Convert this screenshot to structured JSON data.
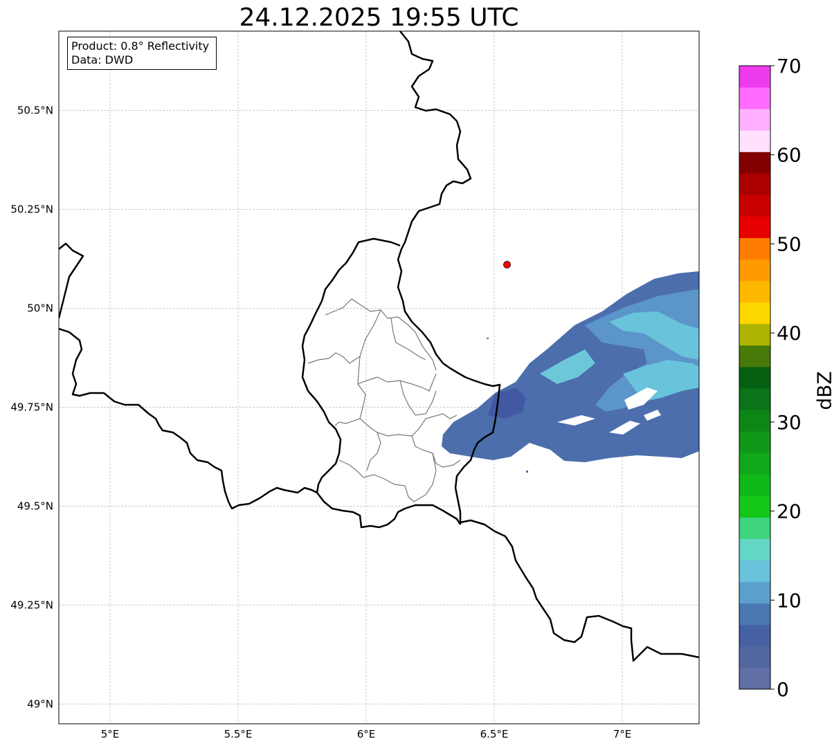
{
  "title": "24.12.2025 19:55 UTC",
  "info": {
    "product": "Product: 0.8° Reflectivity",
    "data": "Data: DWD"
  },
  "axes": {
    "lon_ticks": [
      {
        "value": 5.0,
        "label": "5°E"
      },
      {
        "value": 5.5,
        "label": "5.5°E"
      },
      {
        "value": 6.0,
        "label": "6°E"
      },
      {
        "value": 6.5,
        "label": "6.5°E"
      },
      {
        "value": 7.0,
        "label": "7°E"
      }
    ],
    "lat_ticks": [
      {
        "value": 49.0,
        "label": "49°N"
      },
      {
        "value": 49.25,
        "label": "49.25°N"
      },
      {
        "value": 49.5,
        "label": "49.5°N"
      },
      {
        "value": 49.75,
        "label": "49.75°N"
      },
      {
        "value": 50.0,
        "label": "50°N"
      },
      {
        "value": 50.25,
        "label": "50.25°N"
      },
      {
        "value": 50.5,
        "label": "50.5°N"
      }
    ],
    "lon_range": [
      4.8,
      7.3
    ],
    "lat_range": [
      48.95,
      50.7
    ],
    "grid": true
  },
  "radar_site": {
    "lon": 6.55,
    "lat": 50.11,
    "color": "#ff0000"
  },
  "colorbar": {
    "label": "dBZ",
    "range": [
      0,
      70
    ],
    "ticks": [
      {
        "value": 0,
        "label": "0"
      },
      {
        "value": 10,
        "label": "10"
      },
      {
        "value": 20,
        "label": "20"
      },
      {
        "value": 30,
        "label": "30"
      },
      {
        "value": 40,
        "label": "40"
      },
      {
        "value": 50,
        "label": "50"
      },
      {
        "value": 60,
        "label": "60"
      },
      {
        "value": 70,
        "label": "70"
      }
    ],
    "colors": [
      "#6070a6",
      "#5266a0",
      "#4560a3",
      "#4a78b3",
      "#5ba0cc",
      "#69c3dc",
      "#64d6c6",
      "#3dd47c",
      "#14c818",
      "#10b818",
      "#10a818",
      "#0f9818",
      "#0d8618",
      "#0b7418",
      "#056012",
      "#487a0a",
      "#adb300",
      "#ffd700",
      "#ffb800",
      "#ff9a00",
      "#ff7c00",
      "#e60000",
      "#c80000",
      "#aa0000",
      "#820000",
      "#ffe0ff",
      "#ffb0ff",
      "#ff6cff",
      "#ee3bee"
    ]
  }
}
